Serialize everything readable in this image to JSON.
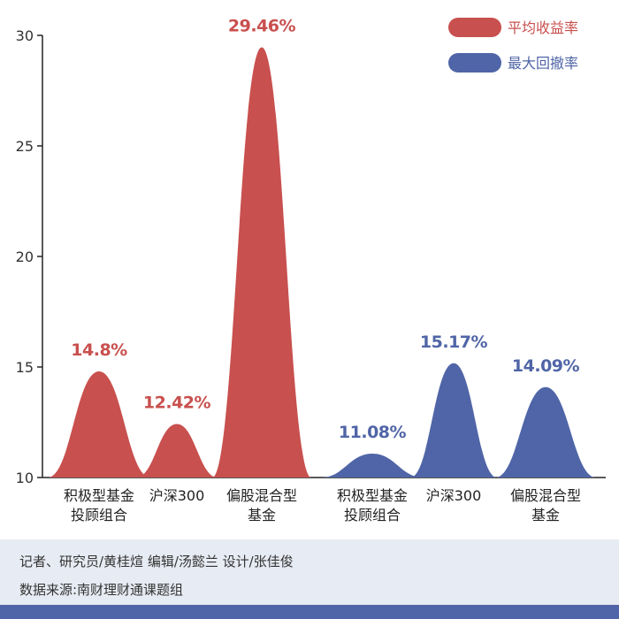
{
  "chart_data": {
    "type": "area",
    "title": "",
    "xlabel": "",
    "ylabel": "",
    "ylim": [
      10,
      30
    ],
    "yticks": [
      10,
      15,
      20,
      25,
      30
    ],
    "grid": false,
    "legend_position": "top-right",
    "categories": [
      [
        "积极型基金",
        "投顾组合"
      ],
      [
        "沪深300"
      ],
      [
        "偏股混合型",
        "基金"
      ],
      [
        "积极型基金",
        "投顾组合"
      ],
      [
        "沪深300"
      ],
      [
        "偏股混合型",
        "基金"
      ]
    ],
    "series": [
      {
        "name": "平均收益率",
        "color": "#c8504e",
        "points": [
          {
            "category_index": 0,
            "value": 14.8,
            "label": "14.8%"
          },
          {
            "category_index": 1,
            "value": 12.42,
            "label": "12.42%"
          },
          {
            "category_index": 2,
            "value": 29.46,
            "label": "29.46%"
          }
        ]
      },
      {
        "name": "最大回撤率",
        "color": "#5065a7",
        "points": [
          {
            "category_index": 3,
            "value": 11.08,
            "label": "11.08%"
          },
          {
            "category_index": 4,
            "value": 15.17,
            "label": "15.17%"
          },
          {
            "category_index": 5,
            "value": 14.09,
            "label": "14.09%"
          }
        ]
      }
    ]
  },
  "footer": {
    "credits": "记者、研究员/黄桂煊  编辑/汤懿兰  设计/张佳俊",
    "source": "数据来源:南财理财通课题组",
    "bar_color": "#5065a7"
  }
}
